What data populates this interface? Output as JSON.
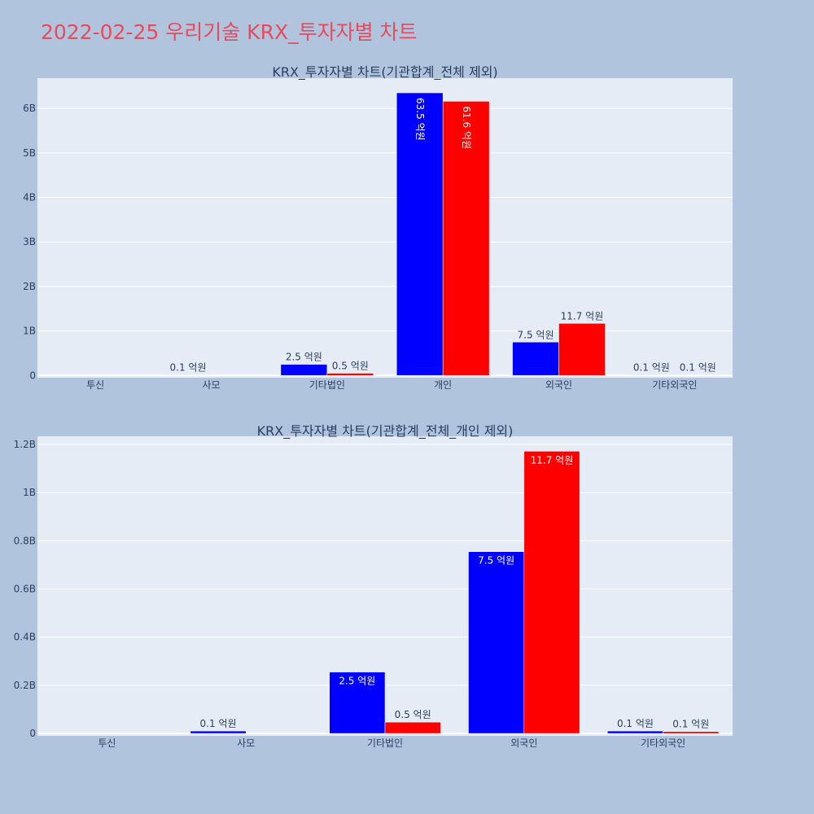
{
  "page": {
    "title": "2022-02-25 우리기술 KRX_투자자별 차트",
    "title_color": "#ea4a5a",
    "background": "#b0c4de",
    "plot_background": "#e5ecf6"
  },
  "chart_data": [
    {
      "type": "bar",
      "title": "KRX_투자자별 차트(기관합계_전체 제외)",
      "categories": [
        "투신",
        "사모",
        "기타법인",
        "개인",
        "외국인",
        "기타외국인"
      ],
      "series": [
        {
          "color": "#0000ff",
          "values": [
            0,
            10000000,
            250000000,
            6350000000,
            750000000,
            10000000
          ],
          "labels": [
            "",
            "0.1 억원",
            "2.5 억원",
            "63.5 억원",
            "7.5 억원",
            "0.1 억원"
          ]
        },
        {
          "color": "#ff0000",
          "values": [
            0,
            0,
            50000000,
            6160000000,
            1170000000,
            10000000
          ],
          "labels": [
            "",
            "",
            "0.5 억원",
            "61.6 억원",
            "11.7 억원",
            "0.1 억원"
          ]
        }
      ],
      "yticks": [
        {
          "value": 0,
          "label": "0"
        },
        {
          "value": 1000000000,
          "label": "1B"
        },
        {
          "value": 2000000000,
          "label": "2B"
        },
        {
          "value": 3000000000,
          "label": "3B"
        },
        {
          "value": 4000000000,
          "label": "4B"
        },
        {
          "value": 5000000000,
          "label": "5B"
        },
        {
          "value": 6000000000,
          "label": "6B"
        }
      ],
      "ylim": [
        -50000000,
        6680000000
      ],
      "grid": true
    },
    {
      "type": "bar",
      "title": "KRX_투자자별 차트(기관합계_전체_개인 제외)",
      "categories": [
        "투신",
        "사모",
        "기타법인",
        "외국인",
        "기타외국인"
      ],
      "series": [
        {
          "color": "#0000ff",
          "values": [
            0,
            10000000,
            255000000,
            755000000,
            10000000
          ],
          "labels": [
            "",
            "0.1 억원",
            "2.5 억원",
            "7.5 억원",
            "0.1 억원"
          ]
        },
        {
          "color": "#ff0000",
          "values": [
            0,
            0,
            47000000,
            1172000000,
            8000000
          ],
          "labels": [
            "",
            "",
            "0.5 억원",
            "11.7 억원",
            "0.1 억원"
          ]
        }
      ],
      "yticks": [
        {
          "value": 0,
          "label": "0"
        },
        {
          "value": 200000000,
          "label": "0.2B"
        },
        {
          "value": 400000000,
          "label": "0.4B"
        },
        {
          "value": 600000000,
          "label": "0.6B"
        },
        {
          "value": 800000000,
          "label": "0.8B"
        },
        {
          "value": 1000000000,
          "label": "1B"
        },
        {
          "value": 1200000000,
          "label": "1.2B"
        }
      ],
      "ylim": [
        -10000000,
        1234000000
      ],
      "grid": true
    }
  ]
}
